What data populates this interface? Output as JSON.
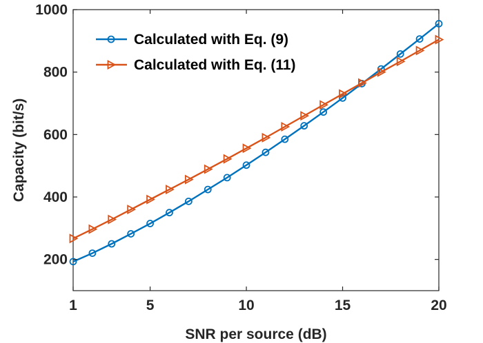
{
  "chart_data": {
    "type": "line",
    "title": "",
    "xlabel": "SNR per source (dB)",
    "ylabel": "Capacity (bit/s)",
    "xlim": [
      1,
      20
    ],
    "ylim": [
      100,
      1000
    ],
    "xticks": [
      1,
      5,
      10,
      15,
      20
    ],
    "yticks": [
      200,
      400,
      600,
      800,
      1000
    ],
    "xtick_labels": [
      "1",
      "5",
      "10",
      "15",
      "20"
    ],
    "ytick_labels": [
      "200",
      "400",
      "600",
      "800",
      "1000"
    ],
    "grid": false,
    "legend_position": "top-left",
    "x": [
      1,
      2,
      3,
      4,
      5,
      6,
      7,
      8,
      9,
      10,
      11,
      12,
      13,
      14,
      15,
      16,
      17,
      18,
      19,
      20
    ],
    "series": [
      {
        "name": "Calculated with Eq. (9)",
        "color": "#0072BD",
        "marker": "circle",
        "values": [
          193,
          220,
          250,
          282,
          315,
          350,
          386,
          424,
          462,
          502,
          543,
          585,
          628,
          672,
          717,
          763,
          810,
          858,
          906,
          955
        ]
      },
      {
        "name": "Calculated with Eq. (11)",
        "color": "#D95319",
        "marker": "triangle-right",
        "values": [
          267,
          297,
          328,
          360,
          392,
          424,
          456,
          489,
          522,
          556,
          590,
          625,
          660,
          695,
          730,
          765,
          800,
          834,
          869,
          904
        ]
      }
    ]
  }
}
